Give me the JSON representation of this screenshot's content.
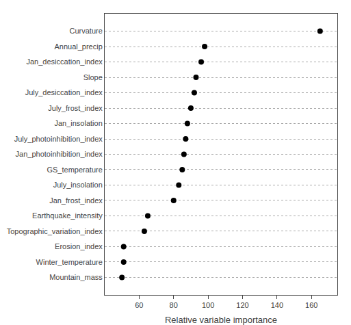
{
  "chart_data": {
    "type": "dot",
    "orientation": "horizontal",
    "categories": [
      "Curvature",
      "Annual_precip",
      "Jan_desiccation_index",
      "Slope",
      "July_desiccation_index",
      "July_frost_index",
      "Jan_insolation",
      "July_photoinhibition_index",
      "Jan_photoinhibition_index",
      "GS_temperature",
      "July_insolation",
      "Jan_frost_index",
      "Earthquake_intensity",
      "Topographic_variation_index",
      "Erosion_index",
      "Winter_temperature",
      "Mountain_mass"
    ],
    "values": [
      165,
      98,
      96,
      93,
      92,
      90,
      88,
      87,
      86,
      85,
      83,
      80,
      65,
      63,
      51,
      51,
      50
    ],
    "color": "#000000",
    "xlim": [
      40,
      175
    ],
    "xticks": [
      60,
      80,
      100,
      120,
      140,
      160
    ],
    "xlabel": "Relative variable importance",
    "grid": true
  }
}
